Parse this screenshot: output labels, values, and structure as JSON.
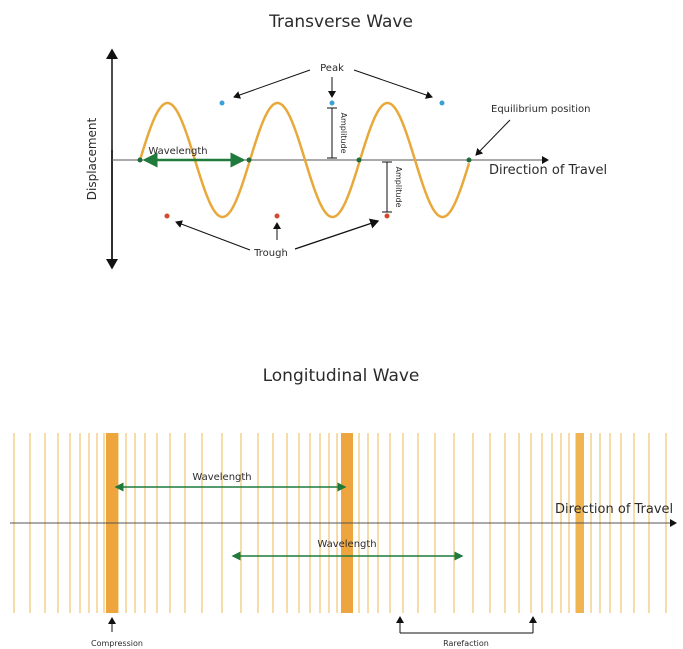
{
  "transverse": {
    "title": "Transverse Wave",
    "y_axis_label": "Displacement",
    "direction_label": "Direction of Travel",
    "peak_label": "Peak",
    "trough_label": "Trough",
    "wavelength_label": "Wavelength",
    "amplitude_label": "Amplitude",
    "equilibrium_label": "Equilibrium position",
    "wave_color": "#e8a93a",
    "peak_dot_color": "#3aa0d8",
    "trough_dot_color": "#d8472b",
    "zero_dot_color": "#1f6b3a",
    "arrow_color": "#1f7a3c"
  },
  "longitudinal": {
    "title": "Longitudinal Wave",
    "direction_label": "Direction of Travel",
    "wavelength_label": "Wavelength",
    "compression_label": "Compression",
    "rarefaction_label": "Rarefaction",
    "line_color": "#f2c97a",
    "compression_color": "#efa53d",
    "arrow_color": "#1f7a3c"
  }
}
